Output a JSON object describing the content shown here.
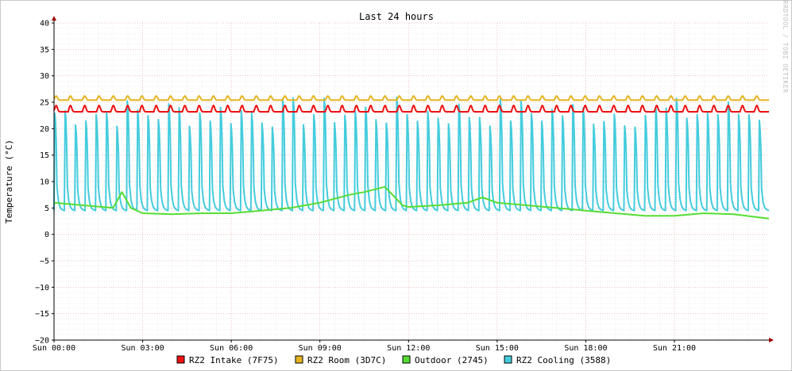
{
  "chart_data": {
    "type": "line",
    "title": "Last 24 hours",
    "ylabel": "Temperature (°C)",
    "watermark": "RRDTOOL / TOBI OETIKER",
    "ylim": [
      -20,
      40
    ],
    "yticks": [
      40,
      35,
      30,
      25,
      20,
      15,
      10,
      5,
      0,
      -5,
      -10,
      -15,
      -20
    ],
    "x_range_hours": [
      0,
      24.2
    ],
    "xticks": [
      {
        "hour": 0,
        "label": "Sun 00:00"
      },
      {
        "hour": 3,
        "label": "Sun 03:00"
      },
      {
        "hour": 6,
        "label": "Sun 06:00"
      },
      {
        "hour": 9,
        "label": "Sun 09:00"
      },
      {
        "hour": 12,
        "label": "Sun 12:00"
      },
      {
        "hour": 15,
        "label": "Sun 15:00"
      },
      {
        "hour": 18,
        "label": "Sun 18:00"
      },
      {
        "hour": 21,
        "label": "Sun 21:00"
      }
    ],
    "grid": true,
    "legend_position": "bottom",
    "series": [
      {
        "name": "RZ2 Intake (7F75)",
        "color": "#ee1111",
        "base": 23.2,
        "amp": 1.2,
        "cycles": 50
      },
      {
        "name": "RZ2 Room (3D7C)",
        "color": "#e6b422",
        "base": 25.4,
        "amp": 0.8,
        "cycles": 50
      },
      {
        "name": "Outdoor (2745)",
        "color": "#55dd33",
        "x": [
          0,
          1,
          2,
          2.3,
          2.6,
          3,
          4,
          5,
          6,
          7,
          8,
          9,
          10,
          10.5,
          11.2,
          11.8,
          12,
          13,
          14,
          14.5,
          15,
          16,
          17,
          18,
          19,
          20,
          21,
          22,
          23,
          24.2
        ],
        "y": [
          6,
          5.5,
          5,
          8,
          5,
          4,
          3.8,
          4,
          4,
          4.5,
          5,
          6,
          7.5,
          8,
          9,
          5.5,
          5.2,
          5.5,
          6,
          7,
          6,
          5.5,
          5,
          4.5,
          4,
          3.5,
          3.5,
          4,
          3.8,
          3
        ]
      },
      {
        "name": "RZ2 Cooling (3588)",
        "color": "#44ccdd",
        "base": 4.5,
        "peak_range": [
          20,
          26
        ],
        "cycles": 69
      }
    ]
  }
}
